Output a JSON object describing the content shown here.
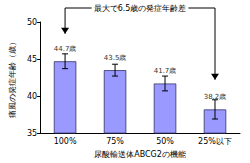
{
  "chart_data": {
    "type": "bar",
    "categories": [
      "100%",
      "75%",
      "50%",
      "25%以下"
    ],
    "values": [
      44.7,
      43.5,
      41.7,
      38.2
    ],
    "value_labels": [
      "44.7歳",
      "43.5歳",
      "41.7歳",
      "38.2歳"
    ],
    "errors": [
      1.0,
      0.8,
      1.0,
      1.3
    ],
    "color": "#9999ff",
    "ylim": [
      35,
      50
    ],
    "yticks": [
      35,
      40,
      45,
      50
    ],
    "x_label": "尿酸輸送体ABCG2の機能",
    "y_label": "痛風の発症年齢（歳）",
    "annotation": "最大で6.5歳の発症年齢差",
    "data_labels": true,
    "grid": false
  }
}
